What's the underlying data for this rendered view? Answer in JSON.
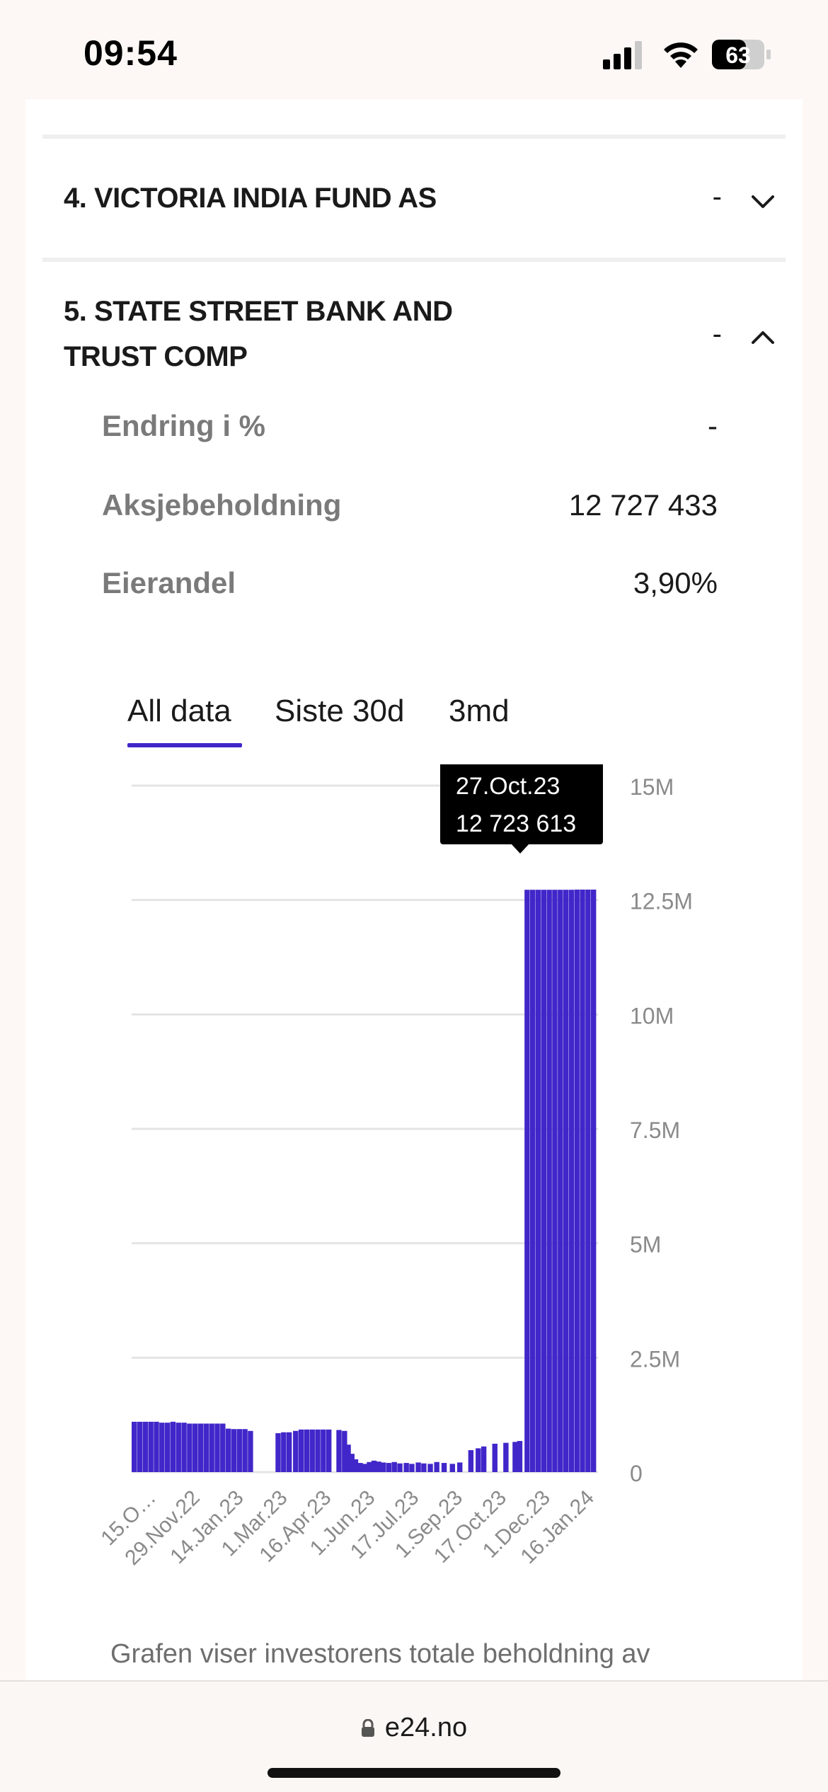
{
  "status": {
    "time": "09:54",
    "battery": "63"
  },
  "accordion": {
    "item4": {
      "title": "4. VICTORIA INDIA FUND AS",
      "dash": "-"
    },
    "item5": {
      "title_line1": "5. STATE STREET BANK AND",
      "title_line2": "TRUST COMP",
      "dash": "-",
      "details": [
        {
          "label": "Endring i %",
          "value": "-"
        },
        {
          "label": "Aksjebeholdning",
          "value": "12 727 433"
        },
        {
          "label": "Eierandel",
          "value": "3,90%"
        }
      ]
    }
  },
  "tabs": [
    {
      "label": "All data",
      "active": true
    },
    {
      "label": "Siste 30d",
      "active": false
    },
    {
      "label": "3md",
      "active": false
    }
  ],
  "tooltip": {
    "date": "27.Oct.23",
    "value": "12 723 613"
  },
  "chart_data": {
    "type": "bar",
    "bar_color": "#4126c9",
    "ylim": [
      0,
      15000000
    ],
    "y_ticks": [
      "0",
      "2.5M",
      "5M",
      "7.5M",
      "10M",
      "12.5M",
      "15M"
    ],
    "x_ticks": [
      "15.O…",
      "29.Nov.22",
      "14.Jan.23",
      "1.Mar.23",
      "16.Apr.23",
      "1.Jun.23",
      "17.Jul.23",
      "1.Sep.23",
      "17.Oct.23",
      "1.Dec.23",
      "16.Jan.24"
    ],
    "grid": true,
    "bars": [
      {
        "x": 0.0,
        "y": 1100000
      },
      {
        "x": 0.012,
        "y": 1100000
      },
      {
        "x": 0.024,
        "y": 1100000
      },
      {
        "x": 0.036,
        "y": 1100000
      },
      {
        "x": 0.048,
        "y": 1100000
      },
      {
        "x": 0.06,
        "y": 1080000
      },
      {
        "x": 0.072,
        "y": 1080000
      },
      {
        "x": 0.084,
        "y": 1100000
      },
      {
        "x": 0.096,
        "y": 1080000
      },
      {
        "x": 0.108,
        "y": 1080000
      },
      {
        "x": 0.12,
        "y": 1060000
      },
      {
        "x": 0.132,
        "y": 1060000
      },
      {
        "x": 0.144,
        "y": 1060000
      },
      {
        "x": 0.156,
        "y": 1060000
      },
      {
        "x": 0.168,
        "y": 1060000
      },
      {
        "x": 0.18,
        "y": 1060000
      },
      {
        "x": 0.192,
        "y": 1060000
      },
      {
        "x": 0.204,
        "y": 950000
      },
      {
        "x": 0.216,
        "y": 940000
      },
      {
        "x": 0.228,
        "y": 940000
      },
      {
        "x": 0.24,
        "y": 940000
      },
      {
        "x": 0.252,
        "y": 900000
      },
      {
        "x": 0.312,
        "y": 850000
      },
      {
        "x": 0.324,
        "y": 870000
      },
      {
        "x": 0.336,
        "y": 870000
      },
      {
        "x": 0.35,
        "y": 900000
      },
      {
        "x": 0.362,
        "y": 930000
      },
      {
        "x": 0.374,
        "y": 930000
      },
      {
        "x": 0.386,
        "y": 930000
      },
      {
        "x": 0.398,
        "y": 930000
      },
      {
        "x": 0.41,
        "y": 930000
      },
      {
        "x": 0.422,
        "y": 930000
      },
      {
        "x": 0.444,
        "y": 920000
      },
      {
        "x": 0.456,
        "y": 900000
      },
      {
        "x": 0.464,
        "y": 600000
      },
      {
        "x": 0.472,
        "y": 400000
      },
      {
        "x": 0.48,
        "y": 280000
      },
      {
        "x": 0.49,
        "y": 200000
      },
      {
        "x": 0.5,
        "y": 180000
      },
      {
        "x": 0.51,
        "y": 220000
      },
      {
        "x": 0.52,
        "y": 250000
      },
      {
        "x": 0.53,
        "y": 230000
      },
      {
        "x": 0.54,
        "y": 210000
      },
      {
        "x": 0.552,
        "y": 200000
      },
      {
        "x": 0.564,
        "y": 220000
      },
      {
        "x": 0.576,
        "y": 190000
      },
      {
        "x": 0.59,
        "y": 200000
      },
      {
        "x": 0.602,
        "y": 180000
      },
      {
        "x": 0.616,
        "y": 210000
      },
      {
        "x": 0.628,
        "y": 190000
      },
      {
        "x": 0.642,
        "y": 180000
      },
      {
        "x": 0.656,
        "y": 220000
      },
      {
        "x": 0.672,
        "y": 200000
      },
      {
        "x": 0.69,
        "y": 180000
      },
      {
        "x": 0.706,
        "y": 210000
      },
      {
        "x": 0.73,
        "y": 480000
      },
      {
        "x": 0.746,
        "y": 520000
      },
      {
        "x": 0.758,
        "y": 560000
      },
      {
        "x": 0.782,
        "y": 620000
      },
      {
        "x": 0.806,
        "y": 640000
      },
      {
        "x": 0.826,
        "y": 660000
      },
      {
        "x": 0.836,
        "y": 680000
      },
      {
        "x": 0.852,
        "y": 12723613
      },
      {
        "x": 0.864,
        "y": 12723613
      },
      {
        "x": 0.876,
        "y": 12723613
      },
      {
        "x": 0.888,
        "y": 12723613
      },
      {
        "x": 0.9,
        "y": 12723613
      },
      {
        "x": 0.912,
        "y": 12723613
      },
      {
        "x": 0.924,
        "y": 12723613
      },
      {
        "x": 0.936,
        "y": 12723613
      },
      {
        "x": 0.948,
        "y": 12723613
      },
      {
        "x": 0.96,
        "y": 12727433
      },
      {
        "x": 0.972,
        "y": 12727433
      },
      {
        "x": 0.984,
        "y": 12727433
      },
      {
        "x": 0.996,
        "y": 12727433
      }
    ]
  },
  "caption": "Grafen viser investorens totale beholdning av",
  "browser": {
    "url": "e24.no"
  }
}
